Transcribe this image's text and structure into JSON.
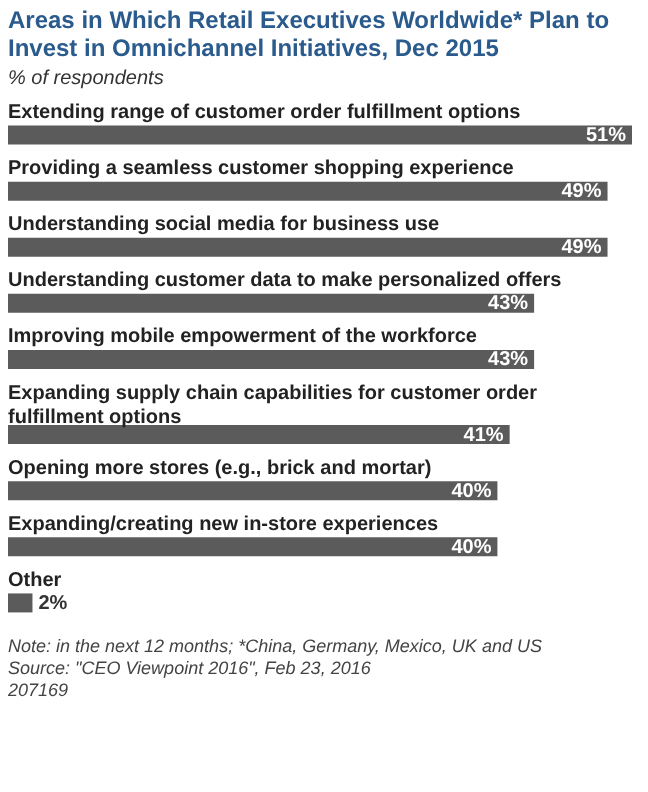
{
  "chart_data": {
    "type": "bar",
    "orientation": "horizontal",
    "title": "Areas in Which Retail Executives Worldwide* Plan to Invest in Omnichannel Initiatives, Dec 2015",
    "subtitle": "% of respondents",
    "categories": [
      "Extending range of customer order fulfillment options",
      "Providing a seamless customer shopping experience",
      "Understanding social media for business use",
      "Understanding customer data to make personalized offers",
      "Improving mobile empowerment of the workforce",
      "Expanding supply chain capabilities for customer order fulfillment options",
      "Opening more stores (e.g., brick and mortar)",
      "Expanding/creating new in-store experiences",
      "Other"
    ],
    "values": [
      51,
      49,
      49,
      43,
      43,
      41,
      40,
      40,
      2
    ],
    "value_labels": [
      "51%",
      "49%",
      "49%",
      "43%",
      "43%",
      "41%",
      "40%",
      "40%",
      "2%"
    ],
    "color": "#5b5b5b",
    "annotations": [
      "Note: in the next 12 months; *China, Germany, Mexico, UK and US",
      "Source: \"CEO Viewpoint 2016\", Feb 23, 2016",
      "207169"
    ]
  }
}
